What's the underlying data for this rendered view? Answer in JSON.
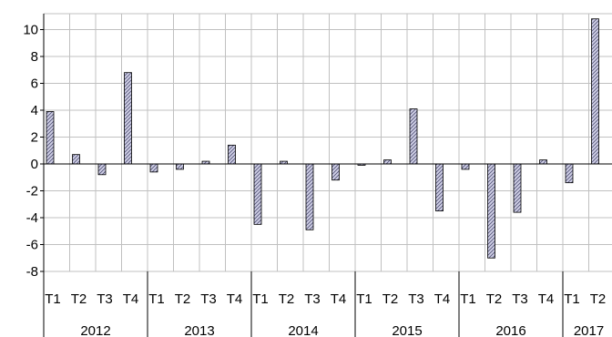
{
  "chart_data": {
    "type": "bar",
    "categories": [
      "T1",
      "T2",
      "T3",
      "T4",
      "T1",
      "T2",
      "T3",
      "T4",
      "T1",
      "T2",
      "T3",
      "T4",
      "T1",
      "T2",
      "T3",
      "T4",
      "T1",
      "T2",
      "T3",
      "T4",
      "T1",
      "T2"
    ],
    "groups": [
      {
        "label": "2012",
        "count": 4
      },
      {
        "label": "2013",
        "count": 4
      },
      {
        "label": "2014",
        "count": 4
      },
      {
        "label": "2015",
        "count": 4
      },
      {
        "label": "2016",
        "count": 4
      },
      {
        "label": "2017",
        "count": 2
      }
    ],
    "series": [
      {
        "values": [
          3.9,
          0.7,
          -0.8,
          6.8,
          -0.6,
          -0.4,
          0.2,
          1.4,
          -4.5,
          0.2,
          -4.9,
          -1.2,
          -0.1,
          0.3,
          4.1,
          -3.5,
          -0.4,
          -7.0,
          -3.6,
          0.3,
          -1.4,
          10.8
        ]
      }
    ],
    "yticks": [
      10,
      8,
      6,
      4,
      2,
      0,
      -2,
      -4,
      -6,
      -8
    ],
    "ylim": [
      -8,
      11
    ],
    "grid": true,
    "colors": {
      "bar_fill": "#d0d0e6",
      "bar_hatch": "#55557a",
      "bar_stroke": "#000000",
      "grid": "#c0c0c0",
      "axis": "#000000"
    }
  }
}
